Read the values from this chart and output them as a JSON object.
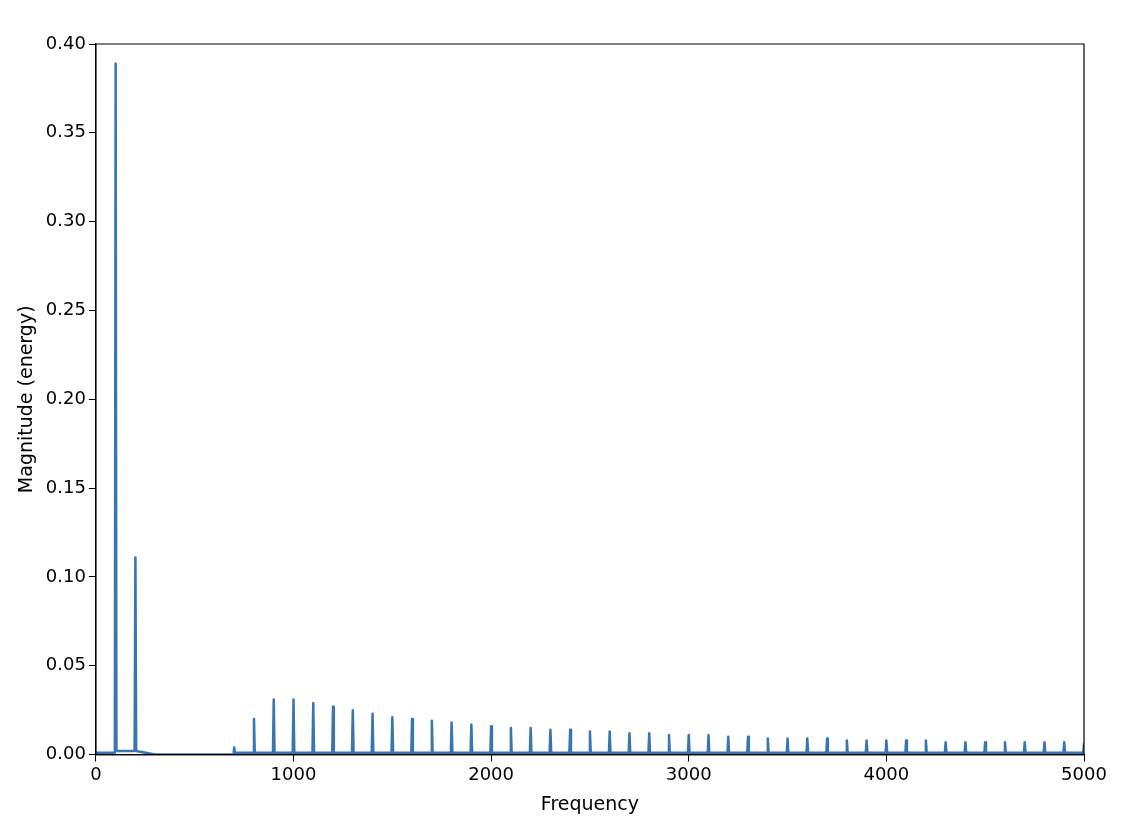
{
  "chart_data": {
    "type": "line",
    "xlabel": "Frequency",
    "ylabel": "Magnitude (energy)",
    "xlim": [
      0,
      5000
    ],
    "xticks": [
      0,
      1000,
      2000,
      3000,
      4000,
      5000
    ],
    "ylim": [
      0,
      0.4
    ],
    "yticks": [
      {
        "value": 0,
        "label": "0.00"
      },
      0.05,
      {
        "value": 0.1,
        "label": "0.10"
      },
      0.15,
      {
        "value": 0.2,
        "label": "0.20"
      },
      0.25,
      {
        "value": 0.3,
        "label": "0.30"
      },
      0.35,
      {
        "value": 0.4,
        "label": "0.40"
      }
    ],
    "grid": false,
    "legend": false,
    "marker": "none",
    "line_style": "solid",
    "series": [
      {
        "color": "#3a75b0",
        "x": [
          0,
          96,
          100,
          104,
          150,
          196,
          200,
          204,
          300,
          400,
          600,
          696,
          700,
          704,
          796,
          800,
          804,
          896,
          900,
          904,
          996,
          1000,
          1004,
          1096,
          1100,
          1104,
          1196,
          1200,
          1204,
          1296,
          1300,
          1304,
          1396,
          1400,
          1404,
          1496,
          1500,
          1504,
          1596,
          1600,
          1604,
          1696,
          1700,
          1704,
          1796,
          1800,
          1804,
          1896,
          1900,
          1904,
          1996,
          2000,
          2004,
          2096,
          2100,
          2104,
          2196,
          2200,
          2204,
          2296,
          2300,
          2304,
          2396,
          2400,
          2404,
          2496,
          2500,
          2504,
          2596,
          2600,
          2604,
          2696,
          2700,
          2704,
          2796,
          2800,
          2804,
          2896,
          2900,
          2904,
          2996,
          3000,
          3004,
          3096,
          3100,
          3104,
          3196,
          3200,
          3204,
          3296,
          3300,
          3304,
          3396,
          3400,
          3404,
          3496,
          3500,
          3504,
          3596,
          3600,
          3604,
          3696,
          3700,
          3704,
          3796,
          3800,
          3804,
          3896,
          3900,
          3904,
          3996,
          4000,
          4004,
          4096,
          4100,
          4104,
          4196,
          4200,
          4204,
          4296,
          4300,
          4304,
          4396,
          4400,
          4404,
          4496,
          4500,
          4504,
          4596,
          4600,
          4604,
          4696,
          4700,
          4704,
          4796,
          4800,
          4804,
          4896,
          4900,
          4904,
          4996,
          5000
        ],
        "values": [
          0.001,
          0.001,
          0.389,
          0.002,
          0.002,
          0.002,
          0.111,
          0.002,
          0,
          0,
          0,
          0,
          0.004,
          0.001,
          0.001,
          0.02,
          0.001,
          0.001,
          0.031,
          0.001,
          0.001,
          0.031,
          0.001,
          0.001,
          0.029,
          0.001,
          0.001,
          0.027,
          0.001,
          0.001,
          0.025,
          0.001,
          0.001,
          0.023,
          0.001,
          0.001,
          0.021,
          0.001,
          0.001,
          0.02,
          0.001,
          0.001,
          0.019,
          0.001,
          0.001,
          0.018,
          0.001,
          0.001,
          0.017,
          0.001,
          0.001,
          0.016,
          0.001,
          0.001,
          0.015,
          0.001,
          0.001,
          0.015,
          0.001,
          0.001,
          0.014,
          0.001,
          0.001,
          0.014,
          0.001,
          0.001,
          0.013,
          0.001,
          0.001,
          0.013,
          0.001,
          0.001,
          0.012,
          0.001,
          0.001,
          0.012,
          0.001,
          0.001,
          0.011,
          0.001,
          0.001,
          0.011,
          0.001,
          0.001,
          0.011,
          0.001,
          0.001,
          0.01,
          0.001,
          0.001,
          0.01,
          0.001,
          0.001,
          0.009,
          0.001,
          0.001,
          0.009,
          0.001,
          0.001,
          0.009,
          0.001,
          0.001,
          0.009,
          0.001,
          0.001,
          0.008,
          0.001,
          0.001,
          0.008,
          0.001,
          0.001,
          0.008,
          0.001,
          0.001,
          0.008,
          0.001,
          0.001,
          0.008,
          0.001,
          0.001,
          0.007,
          0.001,
          0.001,
          0.007,
          0.001,
          0.001,
          0.007,
          0.001,
          0.001,
          0.007,
          0.001,
          0.001,
          0.007,
          0.001,
          0.001,
          0.007,
          0.001,
          0.001,
          0.007,
          0.001,
          0.001,
          0.006
        ]
      }
    ]
  }
}
